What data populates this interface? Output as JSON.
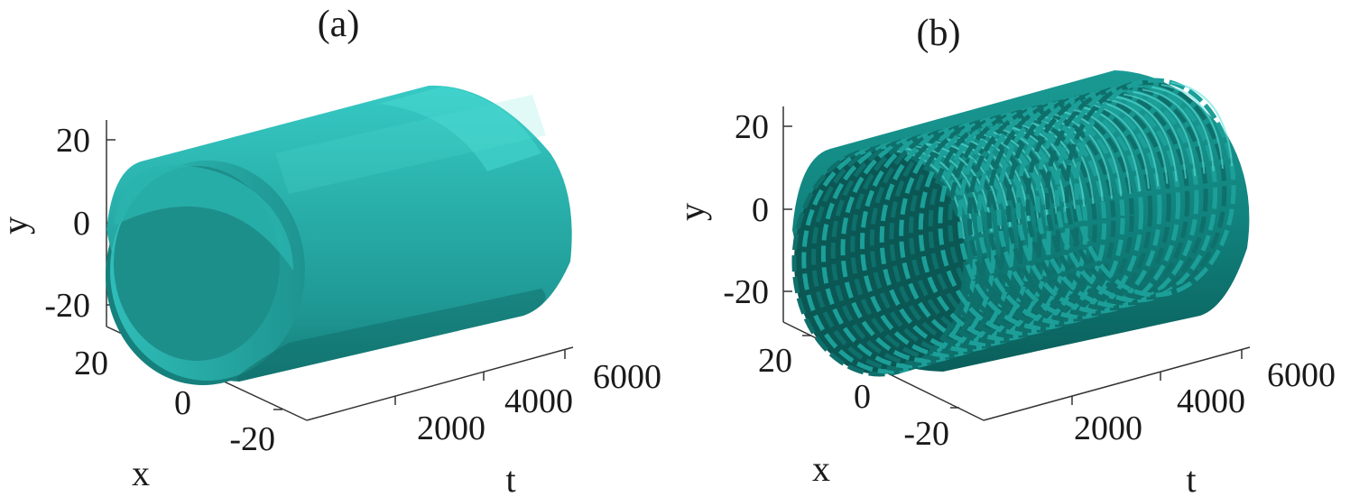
{
  "colors": {
    "surface_a": "#27aaa6",
    "surface_a_highlight": "#5fe8e2",
    "surface_a_shadow": "#0f6f6c",
    "surface_b": "#138681",
    "surface_b_highlight": "#4dd8cf",
    "surface_b_shadow": "#063c3a",
    "axis": "#333333"
  },
  "chart_data": [
    {
      "type": "surface3d",
      "title": "(a)",
      "xlabel": "t",
      "ylabel": "x",
      "zlabel": "y",
      "t_ticks": [
        "2000",
        "4000",
        "6000"
      ],
      "x_ticks": [
        "20",
        "0",
        "-20"
      ],
      "y_ticks": [
        "20",
        "0",
        "-20"
      ],
      "t_range": [
        0,
        6000
      ],
      "x_range": [
        -25,
        25
      ],
      "y_range": [
        -25,
        25
      ],
      "description_values": {
        "radius": 22,
        "t_span": [
          0,
          6000
        ]
      }
    },
    {
      "type": "surface3d",
      "title": "(b)",
      "xlabel": "t",
      "ylabel": "x",
      "zlabel": "y",
      "t_ticks": [
        "2000",
        "4000",
        "6000"
      ],
      "x_ticks": [
        "20",
        "0",
        "-20"
      ],
      "y_ticks": [
        "20",
        "0",
        "-20"
      ],
      "t_range": [
        0,
        6000
      ],
      "x_range": [
        -25,
        25
      ],
      "y_range": [
        -25,
        25
      ],
      "description_values": {
        "radius": 22,
        "t_span": [
          0,
          6000
        ]
      }
    }
  ]
}
